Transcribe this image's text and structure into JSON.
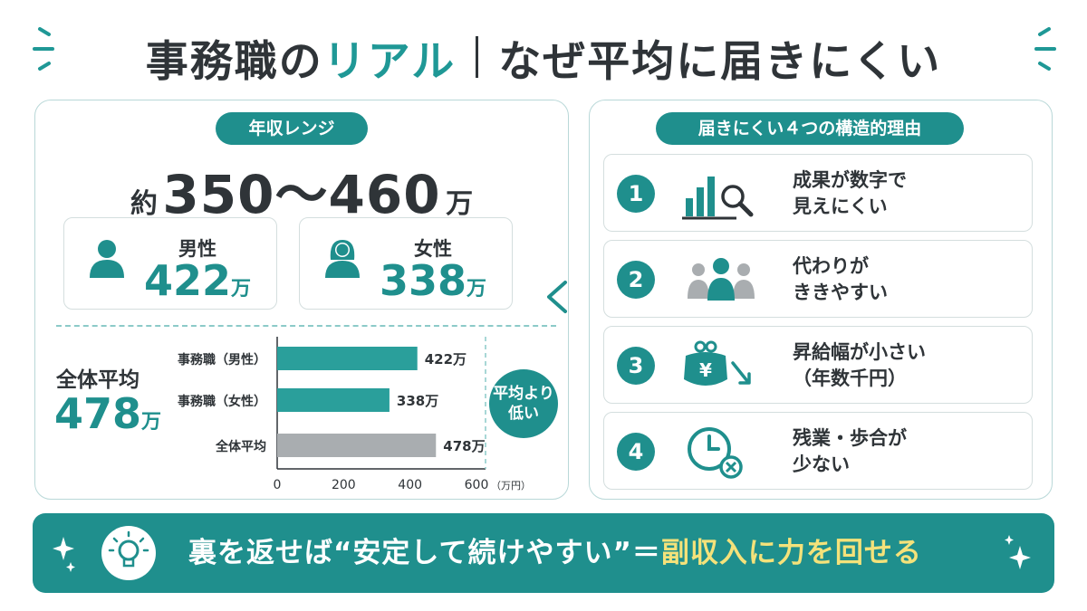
{
  "title": {
    "part1": "事務職の",
    "part2": "リアル",
    "part3": "なぜ平均に届きにくい"
  },
  "income": {
    "label": "年収レンジ",
    "prefix": "約",
    "range": "350～460",
    "unit": "万",
    "male": {
      "label": "男性",
      "value": "422",
      "unit": "万"
    },
    "female": {
      "label": "女性",
      "value": "338",
      "unit": "万"
    }
  },
  "average": {
    "label": "全体平均",
    "value": "478",
    "unit": "万"
  },
  "comparison": {
    "symbol": "<",
    "badge_line1": "平均より",
    "badge_line2": "低い"
  },
  "chart_data": {
    "type": "bar",
    "orientation": "horizontal",
    "categories": [
      "事務職（男性）",
      "事務職（女性）",
      "全体平均"
    ],
    "values": [
      422,
      338,
      478
    ],
    "value_labels": [
      "422万",
      "338万",
      "478万"
    ],
    "xlim": [
      0,
      600
    ],
    "x_ticks": [
      "0",
      "200",
      "400",
      "600"
    ],
    "x_unit": "（万円）",
    "colors": [
      "#2a9f9b",
      "#2a9f9b",
      "#a9adb0"
    ]
  },
  "reasons": {
    "label": "届きにくい４つの構造的理由",
    "items": [
      {
        "num": "1",
        "line1": "成果が数字で",
        "line2": "見えにくい",
        "icon": "bar-chart-magnifier-icon"
      },
      {
        "num": "2",
        "line1": "代わりが",
        "line2": "ききやすい",
        "icon": "people-icon"
      },
      {
        "num": "3",
        "line1": "昇給幅が小さい",
        "line2": "（年数千円）",
        "icon": "yen-purse-down-icon"
      },
      {
        "num": "4",
        "line1": "残業・歩合が",
        "line2": "少ない",
        "icon": "clock-cancel-icon"
      }
    ]
  },
  "banner": {
    "text1": "裏を返せば“安定して続けやすい”＝",
    "text2": "副収入に力を回せる"
  },
  "colors": {
    "accent": "#1f8f8d",
    "bar_gray": "#a9adb0",
    "highlight": "#f4e27a"
  }
}
